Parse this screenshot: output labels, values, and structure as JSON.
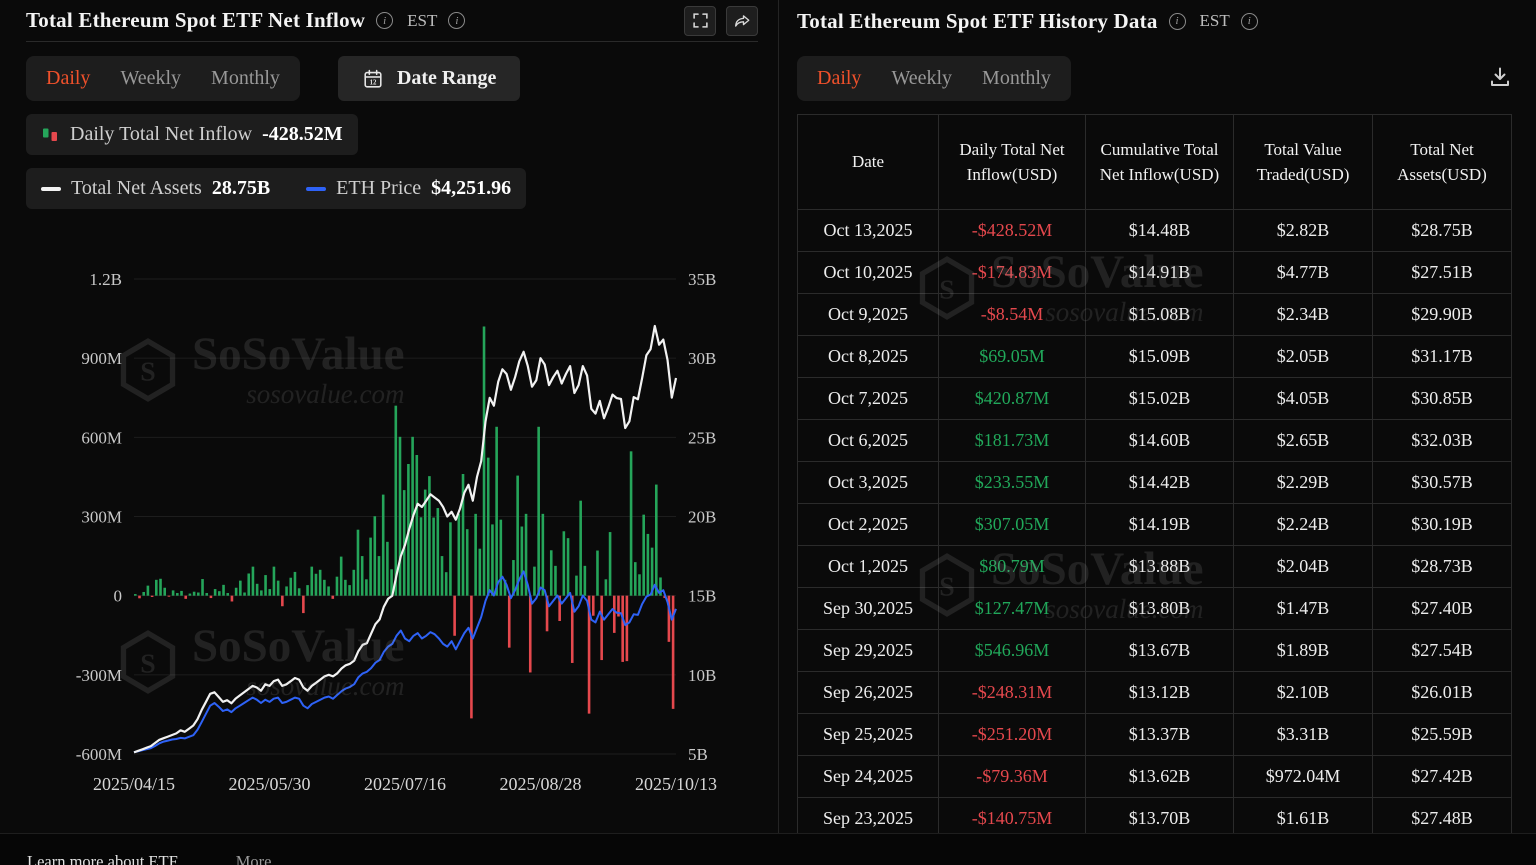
{
  "left_panel": {
    "title": "Total Ethereum Spot ETF Net Inflow",
    "est_label": "EST",
    "tabs": [
      "Daily",
      "Weekly",
      "Monthly"
    ],
    "active_tab": "Daily",
    "date_range_label": "Date Range",
    "legend": {
      "inflow_label": "Daily Total Net Inflow",
      "inflow_value": "-428.52M",
      "assets_label": "Total Net Assets",
      "assets_value": "28.75B",
      "price_label": "ETH Price",
      "price_value": "$4,251.96"
    }
  },
  "right_panel": {
    "title": "Total Ethereum Spot ETF History Data",
    "est_label": "EST",
    "tabs": [
      "Daily",
      "Weekly",
      "Monthly"
    ],
    "active_tab": "Daily",
    "table": {
      "columns": [
        "Date",
        "Daily Total Net Inflow(USD)",
        "Cumulative Total Net Inflow(USD)",
        "Total Value Traded(USD)",
        "Total Net Assets(USD)"
      ],
      "rows": [
        {
          "date": "Oct 13,2025",
          "inflow": "-$428.52M",
          "cumulative": "$14.48B",
          "traded": "$2.82B",
          "assets": "$28.75B"
        },
        {
          "date": "Oct 10,2025",
          "inflow": "-$174.83M",
          "cumulative": "$14.91B",
          "traded": "$4.77B",
          "assets": "$27.51B"
        },
        {
          "date": "Oct 9,2025",
          "inflow": "-$8.54M",
          "cumulative": "$15.08B",
          "traded": "$2.34B",
          "assets": "$29.90B"
        },
        {
          "date": "Oct 8,2025",
          "inflow": "$69.05M",
          "cumulative": "$15.09B",
          "traded": "$2.05B",
          "assets": "$31.17B"
        },
        {
          "date": "Oct 7,2025",
          "inflow": "$420.87M",
          "cumulative": "$15.02B",
          "traded": "$4.05B",
          "assets": "$30.85B"
        },
        {
          "date": "Oct 6,2025",
          "inflow": "$181.73M",
          "cumulative": "$14.60B",
          "traded": "$2.65B",
          "assets": "$32.03B"
        },
        {
          "date": "Oct 3,2025",
          "inflow": "$233.55M",
          "cumulative": "$14.42B",
          "traded": "$2.29B",
          "assets": "$30.57B"
        },
        {
          "date": "Oct 2,2025",
          "inflow": "$307.05M",
          "cumulative": "$14.19B",
          "traded": "$2.24B",
          "assets": "$30.19B"
        },
        {
          "date": "Oct 1,2025",
          "inflow": "$80.79M",
          "cumulative": "$13.88B",
          "traded": "$2.04B",
          "assets": "$28.73B"
        },
        {
          "date": "Sep 30,2025",
          "inflow": "$127.47M",
          "cumulative": "$13.80B",
          "traded": "$1.47B",
          "assets": "$27.40B"
        },
        {
          "date": "Sep 29,2025",
          "inflow": "$546.96M",
          "cumulative": "$13.67B",
          "traded": "$1.89B",
          "assets": "$27.54B"
        },
        {
          "date": "Sep 26,2025",
          "inflow": "-$248.31M",
          "cumulative": "$13.12B",
          "traded": "$2.10B",
          "assets": "$26.01B"
        },
        {
          "date": "Sep 25,2025",
          "inflow": "-$251.20M",
          "cumulative": "$13.37B",
          "traded": "$3.31B",
          "assets": "$25.59B"
        },
        {
          "date": "Sep 24,2025",
          "inflow": "-$79.36M",
          "cumulative": "$13.62B",
          "traded": "$972.04M",
          "assets": "$27.42B"
        },
        {
          "date": "Sep 23,2025",
          "inflow": "-$140.75M",
          "cumulative": "$13.70B",
          "traded": "$1.61B",
          "assets": "$27.48B"
        }
      ]
    }
  },
  "watermark": {
    "brand": "SoSoValue",
    "domain": "sosovalue.com"
  },
  "footer": {
    "learn_more": "Learn more about ETF",
    "more": "More"
  },
  "icons": {
    "info_glyph": "i",
    "calendar_glyph": "12",
    "semantics": {
      "info-icon": "circled letter i",
      "fullscreen-icon": "expand corners",
      "share-icon": "curved share arrow",
      "calendar-icon": "calendar page",
      "download-icon": "download tray arrow",
      "inflow-legend-icon": "green and red mini bars",
      "assets-legend-icon": "white dash",
      "eth-price-legend-icon": "blue dash",
      "watermark-logo-icon": "hexagonal cube logo"
    }
  },
  "colors": {
    "accent_orange": "#f0512b",
    "positive_green": "#25a55a",
    "negative_red": "#e5484d",
    "eth_line_blue": "#2e62f6",
    "assets_line_white": "#f2f2f2",
    "grid": "#1d1d1d",
    "axis_text": "#c9c9c9"
  },
  "chart_data": {
    "type": "bar",
    "title": "Total Ethereum Spot ETF Net Inflow",
    "x_range": [
      "2025/04/15",
      "2025/10/13"
    ],
    "x_tick_labels": [
      "2025/04/15",
      "2025/05/30",
      "2025/07/16",
      "2025/08/28",
      "2025/10/13"
    ],
    "left_axis": {
      "unit": "USD",
      "tick_labels": [
        "1.2B",
        "900M",
        "600M",
        "300M",
        "0",
        "-300M",
        "-600M"
      ],
      "tick_values_m": [
        1200,
        900,
        600,
        300,
        0,
        -300,
        -600
      ]
    },
    "right_axis": {
      "unit": "USD",
      "tick_labels": [
        "35B",
        "30B",
        "25B",
        "20B",
        "15B",
        "10B",
        "5B"
      ],
      "tick_values_b": [
        35,
        30,
        25,
        20,
        15,
        10,
        5
      ]
    },
    "grid": true,
    "legend_position": "top-left",
    "series": [
      {
        "name": "Daily Total Net Inflow",
        "type": "bar",
        "axis": "left",
        "unit": "M USD",
        "latest": -428.52,
        "values": [
          6,
          -10,
          14,
          38,
          -5,
          60,
          64,
          30,
          -2,
          20,
          10,
          18,
          -12,
          8,
          15,
          12,
          63,
          10,
          -9,
          25,
          17,
          41,
          10,
          -22,
          30,
          57,
          12,
          84,
          110,
          45,
          20,
          78,
          25,
          110,
          57,
          -40,
          35,
          68,
          90,
          28,
          -66,
          40,
          110,
          83,
          98,
          60,
          35,
          -12,
          72,
          148,
          60,
          40,
          98,
          250,
          150,
          62,
          220,
          301,
          150,
          383,
          204,
          100,
          720,
          602,
          400,
          499,
          602,
          533,
          297,
          402,
          453,
          296,
          332,
          150,
          89,
          278,
          -152,
          310,
          461,
          252,
          -465,
          310,
          178,
          1020,
          523,
          270,
          640,
          288,
          60,
          -197,
          135,
          455,
          262,
          310,
          -291,
          110,
          640,
          310,
          -135,
          172,
          113,
          -96,
          244,
          218,
          -255,
          76,
          360,
          113,
          -447,
          -76,
          171,
          -244,
          62,
          241,
          -141,
          -79,
          -251,
          -248,
          547,
          127,
          81,
          307,
          234,
          182,
          421,
          69,
          -9,
          -175,
          -429
        ]
      },
      {
        "name": "Total Net Assets",
        "type": "line",
        "axis": "right",
        "unit": "B USD",
        "latest": 28.75,
        "values": [
          5.1,
          5.2,
          5.3,
          5.4,
          5.5,
          5.7,
          5.9,
          6.0,
          6.1,
          6.2,
          6.3,
          6.5,
          6.4,
          6.6,
          6.8,
          7.2,
          7.8,
          8.3,
          8.8,
          8.9,
          8.6,
          8.3,
          8.4,
          8.2,
          8.5,
          8.7,
          8.9,
          9.1,
          9.3,
          9.2,
          9.0,
          9.4,
          9.3,
          9.6,
          9.7,
          9.3,
          9.4,
          9.6,
          9.8,
          9.7,
          9.2,
          9.0,
          9.3,
          9.5,
          9.7,
          9.9,
          10.0,
          9.9,
          10.1,
          10.4,
          10.6,
          10.7,
          10.9,
          11.5,
          11.9,
          12.0,
          12.6,
          13.2,
          13.5,
          14.3,
          14.8,
          15.0,
          16.3,
          17.5,
          18.2,
          19.2,
          20.1,
          20.8,
          20.6,
          21.0,
          21.4,
          21.2,
          21.0,
          20.6,
          20.0,
          20.3,
          19.8,
          20.5,
          21.5,
          22.0,
          21.0,
          22.5,
          23.5,
          26.0,
          27.5,
          27.0,
          28.5,
          29.3,
          29.0,
          28.0,
          28.8,
          29.8,
          30.4,
          29.5,
          28.2,
          28.6,
          30.0,
          29.6,
          28.3,
          28.8,
          29.2,
          28.4,
          29.0,
          29.5,
          27.8,
          28.3,
          29.5,
          28.9,
          26.8,
          26.5,
          27.3,
          26.2,
          26.9,
          27.7,
          27.48,
          27.42,
          25.59,
          26.01,
          27.54,
          27.4,
          28.73,
          30.19,
          30.57,
          32.03,
          30.85,
          31.17,
          29.9,
          27.51,
          28.75
        ]
      },
      {
        "name": "ETH Price",
        "type": "line",
        "axis": "hidden",
        "unit": "USD",
        "latest": 4251.96,
        "values": [
          1585,
          1600,
          1620,
          1640,
          1660,
          1700,
          1750,
          1780,
          1800,
          1820,
          1830,
          1850,
          1840,
          1870,
          1900,
          2000,
          2150,
          2300,
          2450,
          2500,
          2430,
          2350,
          2380,
          2330,
          2400,
          2450,
          2500,
          2550,
          2600,
          2560,
          2500,
          2560,
          2520,
          2580,
          2600,
          2500,
          2520,
          2560,
          2600,
          2580,
          2450,
          2400,
          2480,
          2520,
          2560,
          2600,
          2620,
          2580,
          2650,
          2720,
          2770,
          2800,
          2850,
          2980,
          3050,
          3080,
          3150,
          3250,
          3300,
          3450,
          3550,
          3600,
          3750,
          3850,
          3700,
          3650,
          3750,
          3800,
          3700,
          3750,
          3820,
          3780,
          3700,
          3600,
          3550,
          3650,
          3500,
          3650,
          3800,
          3900,
          3700,
          3900,
          4100,
          4400,
          4600,
          4500,
          4750,
          4850,
          4700,
          4450,
          4600,
          4800,
          4950,
          4700,
          4350,
          4450,
          4650,
          4600,
          4300,
          4400,
          4500,
          4350,
          4450,
          4550,
          4200,
          4300,
          4500,
          4400,
          4050,
          4000,
          4200,
          4050,
          4150,
          4250,
          4180,
          4170,
          3950,
          4000,
          4150,
          4140,
          4340,
          4480,
          4520,
          4700,
          4550,
          4600,
          4380,
          4050,
          4252
        ]
      }
    ]
  }
}
